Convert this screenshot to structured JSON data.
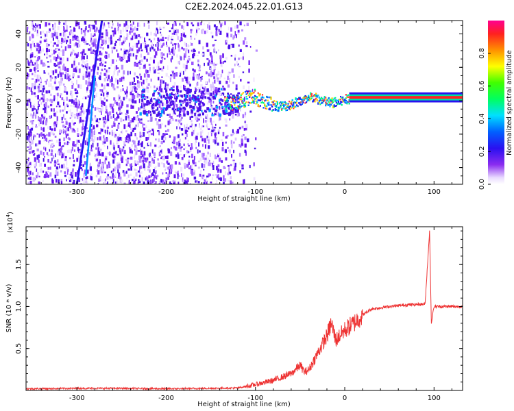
{
  "title": "C2E2.2024.045.22.01.G13",
  "chart_data": [
    {
      "type": "heatmap",
      "xlabel": "Height of straight line (km)",
      "ylabel": "Frequency (Hz)",
      "xlim": [
        -357,
        132
      ],
      "ylim": [
        -50,
        48
      ],
      "xticks": [
        -300,
        -200,
        -100,
        0,
        100
      ],
      "yticks": [
        -40,
        -20,
        0,
        20,
        40
      ],
      "colorbar": {
        "label": "Normalized spectral amplitude",
        "range": [
          0.0,
          1.0
        ],
        "ticks": [
          0.0,
          0.2,
          0.4,
          0.6,
          0.8
        ]
      },
      "features": {
        "steady_tone": {
          "x_start": 5,
          "x_end": 132,
          "freq": 2
        },
        "chirp_lines": [
          {
            "x_start": -300,
            "x_end": -272,
            "freq_start": -50,
            "freq_end": 48
          },
          {
            "x_start": -290,
            "x_end": -280,
            "freq_start": -45,
            "freq_end": 15
          }
        ],
        "noise_region_x": [
          -357,
          -110
        ]
      }
    },
    {
      "type": "line",
      "xlabel": "Height of straight line (km)",
      "ylabel": "SNR (10 * v/v)",
      "y_multiplier": "(x10",
      "y_multiplier_exp": "4",
      "y_multiplier_close": ")",
      "xlim": [
        -357,
        132
      ],
      "ylim": [
        0,
        1.95
      ],
      "xticks": [
        -300,
        -200,
        -100,
        0,
        100
      ],
      "yticks": [
        0.5,
        1.0,
        1.5
      ],
      "series": [
        {
          "color": "#ee3333",
          "x": [
            -357,
            -300,
            -250,
            -200,
            -150,
            -120,
            -100,
            -80,
            -60,
            -50,
            -45,
            -40,
            -30,
            -20,
            -15,
            -10,
            0,
            10,
            20,
            30,
            50,
            70,
            90,
            95,
            97,
            100,
            132
          ],
          "y": [
            0.02,
            0.025,
            0.025,
            0.02,
            0.025,
            0.03,
            0.07,
            0.12,
            0.2,
            0.3,
            0.22,
            0.25,
            0.45,
            0.65,
            0.8,
            0.6,
            0.72,
            0.8,
            0.9,
            0.97,
            1.0,
            1.02,
            1.03,
            1.9,
            0.8,
            1.0,
            1.0
          ]
        }
      ]
    }
  ]
}
